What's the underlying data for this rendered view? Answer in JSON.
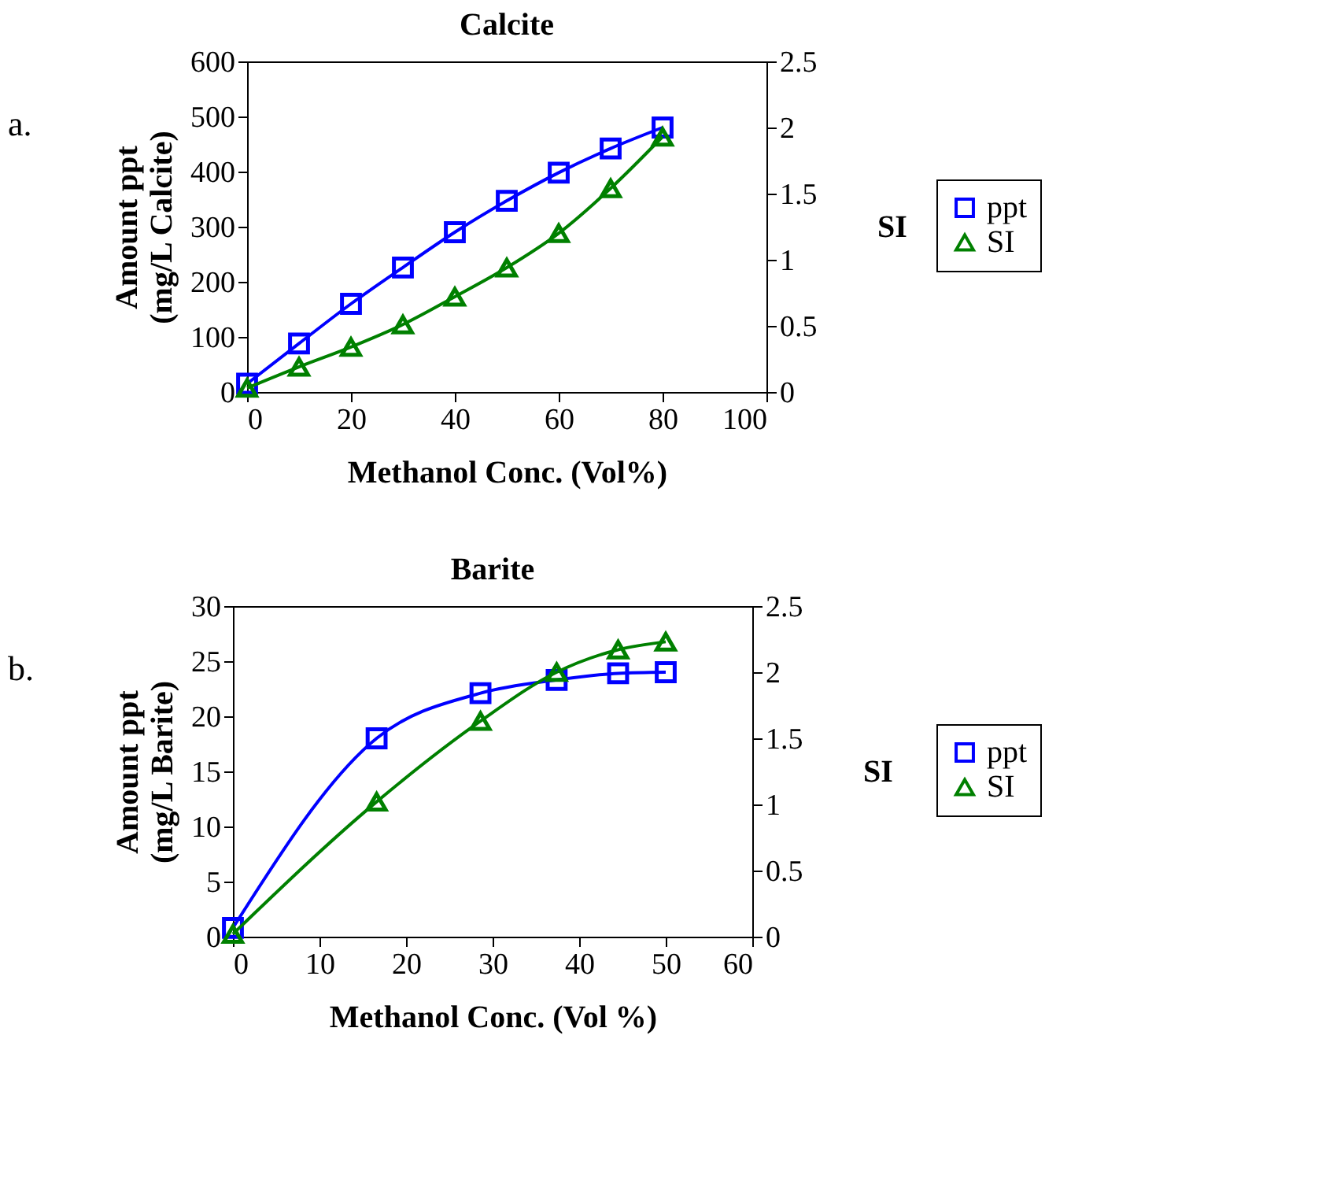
{
  "chart_data": [
    {
      "type": "line",
      "title": "Calcite",
      "xlabel": "Methanol Conc. (Vol%)",
      "ylabel": "Amount ppt\n(mg/L Calcite)",
      "y2label": "SI",
      "annotations": [
        "a."
      ],
      "xlim": [
        0,
        100
      ],
      "xticks": [
        0,
        20,
        40,
        60,
        80,
        100
      ],
      "ylim": [
        0,
        600
      ],
      "yticks": [
        0,
        100,
        200,
        300,
        400,
        500,
        600
      ],
      "y2lim": [
        0,
        2.5
      ],
      "y2ticks": [
        {
          "value": 0,
          "label": "0"
        },
        0.5,
        {
          "value": 1,
          "label": "1"
        },
        1.5,
        {
          "value": 2,
          "label": "2"
        },
        2.5
      ],
      "legend": "right",
      "grid": false,
      "line_style": "solid",
      "series": [
        {
          "name": "ppt",
          "color": "#0000ff",
          "marker": "square",
          "x": [
            0,
            10,
            20,
            30,
            40,
            50,
            60,
            70,
            80
          ],
          "values": [
            15,
            88,
            160,
            226,
            290,
            347,
            398,
            442,
            480
          ]
        },
        {
          "name": "SI",
          "color": "#008000",
          "marker": "triangle",
          "axis": "y2",
          "x": [
            0,
            10,
            20,
            30,
            40,
            50,
            60,
            70,
            80
          ],
          "values": [
            0.03,
            0.19,
            0.34,
            0.51,
            0.72,
            0.94,
            1.2,
            1.54,
            1.93
          ]
        }
      ]
    },
    {
      "type": "line",
      "title": "Barite",
      "xlabel": "Methanol Conc. (Vol %)",
      "ylabel": "Amount ppt\n(mg/L Barite)",
      "y2label": "SI",
      "annotations": [
        "b."
      ],
      "xlim": [
        0,
        60
      ],
      "xticks": [
        0,
        10,
        20,
        30,
        40,
        50,
        60
      ],
      "ylim": [
        0,
        30
      ],
      "yticks": [
        0,
        5,
        10,
        15,
        20,
        25,
        30
      ],
      "y2lim": [
        0,
        2.5
      ],
      "y2ticks": [
        {
          "value": 0,
          "label": "0"
        },
        0.5,
        {
          "value": 1,
          "label": "1"
        },
        1.5,
        {
          "value": 2,
          "label": "2"
        },
        2.5
      ],
      "legend": "right",
      "grid": false,
      "line_style": "solid",
      "series": [
        {
          "name": "ppt",
          "color": "#0000ff",
          "marker": "square",
          "x": [
            0,
            16.6,
            28.6,
            37.4,
            44.5,
            50
          ],
          "values": [
            0.8,
            18.0,
            22.1,
            23.3,
            23.9,
            24.0
          ]
        },
        {
          "name": "SI",
          "color": "#008000",
          "marker": "triangle",
          "axis": "y2",
          "x": [
            0,
            16.6,
            28.6,
            37.4,
            44.5,
            50
          ],
          "values": [
            0.02,
            1.02,
            1.63,
            2.0,
            2.17,
            2.23
          ]
        }
      ]
    }
  ]
}
